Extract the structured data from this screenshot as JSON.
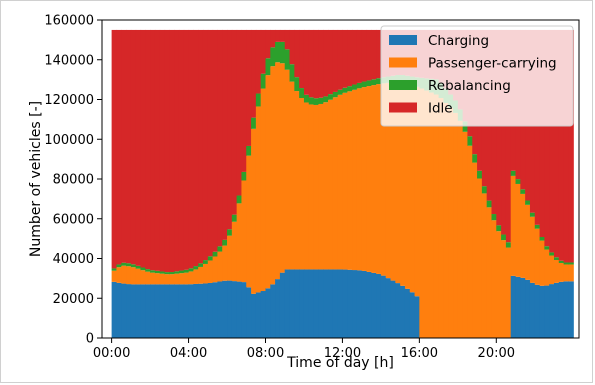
{
  "chart_data": {
    "type": "stacked-bar",
    "title": "",
    "xlabel": "Time of day [h]",
    "ylabel": "Number of vehicles [-]",
    "xlim": [
      -0.5,
      24.3
    ],
    "ylim": [
      0,
      160000
    ],
    "x_ticks": [
      0,
      4,
      8,
      12,
      16,
      20
    ],
    "x_tick_labels": [
      "00:00",
      "04:00",
      "08:00",
      "12:00",
      "16:00",
      "20:00"
    ],
    "y_ticks": [
      0,
      20000,
      40000,
      60000,
      80000,
      100000,
      120000,
      140000,
      160000
    ],
    "y_tick_labels": [
      "0",
      "20000",
      "40000",
      "60000",
      "80000",
      "100000",
      "120000",
      "140000",
      "160000"
    ],
    "grid": false,
    "legend_position": "top-right",
    "total_fleet": 155000,
    "bin_width_hours": 0.25,
    "series": [
      {
        "name": "Charging",
        "color": "#1f77b4",
        "anchors": [
          [
            0,
            28500
          ],
          [
            0.5,
            27500
          ],
          [
            1,
            27000
          ],
          [
            2,
            27000
          ],
          [
            3,
            27000
          ],
          [
            4,
            27000
          ],
          [
            5,
            27500
          ],
          [
            6,
            29000
          ],
          [
            7,
            28000
          ],
          [
            7.3,
            22000
          ],
          [
            8,
            24000
          ],
          [
            8.5,
            28000
          ],
          [
            9,
            34500
          ],
          [
            10,
            34500
          ],
          [
            11,
            34500
          ],
          [
            12,
            34500
          ],
          [
            13,
            34000
          ],
          [
            14,
            32000
          ],
          [
            15,
            27000
          ],
          [
            15.5,
            24000
          ],
          [
            16,
            20000
          ],
          [
            16.01,
            0
          ],
          [
            19,
            0
          ],
          [
            20.75,
            0
          ],
          [
            20.76,
            31500
          ],
          [
            21.5,
            30000
          ],
          [
            22,
            27000
          ],
          [
            22.5,
            26000
          ],
          [
            23,
            27500
          ],
          [
            23.5,
            28500
          ]
        ]
      },
      {
        "name": "Passenger-carrying",
        "color": "#ff7f0e",
        "total_anchors": [
          [
            0,
            33000
          ],
          [
            0.5,
            36500
          ],
          [
            1,
            36000
          ],
          [
            2,
            33000
          ],
          [
            3,
            32000
          ],
          [
            4,
            33000
          ],
          [
            4.5,
            35000
          ],
          [
            5,
            38000
          ],
          [
            5.5,
            42000
          ],
          [
            6,
            48000
          ],
          [
            6.5,
            62000
          ],
          [
            7,
            85000
          ],
          [
            7.5,
            112000
          ],
          [
            8,
            130000
          ],
          [
            8.5,
            139000
          ],
          [
            9,
            138000
          ],
          [
            9.5,
            126000
          ],
          [
            10,
            119000
          ],
          [
            10.5,
            117000
          ],
          [
            11,
            118000
          ],
          [
            12,
            123000
          ],
          [
            13,
            126000
          ],
          [
            14,
            128000
          ],
          [
            15,
            129000
          ],
          [
            16,
            126000
          ],
          [
            17,
            122000
          ],
          [
            18,
            112000
          ],
          [
            18.5,
            101000
          ],
          [
            19,
            84000
          ],
          [
            19.5,
            69000
          ],
          [
            20,
            56000
          ],
          [
            20.5,
            47000
          ],
          [
            20.75,
            44000
          ],
          [
            20.76,
            83000
          ],
          [
            21,
            80000
          ],
          [
            21.5,
            70000
          ],
          [
            22,
            58000
          ],
          [
            22.5,
            46000
          ],
          [
            23,
            40000
          ],
          [
            23.5,
            37000
          ]
        ]
      },
      {
        "name": "Rebalancing",
        "color": "#2ca02c",
        "extra_anchors": [
          [
            0,
            1000
          ],
          [
            0.5,
            1500
          ],
          [
            1,
            1500
          ],
          [
            3,
            1000
          ],
          [
            4,
            1500
          ],
          [
            5,
            2000
          ],
          [
            6,
            3000
          ],
          [
            7,
            4500
          ],
          [
            7.5,
            6000
          ],
          [
            8,
            8000
          ],
          [
            8.5,
            10000
          ],
          [
            9,
            11000
          ],
          [
            9.5,
            8000
          ],
          [
            10,
            4000
          ],
          [
            11,
            3000
          ],
          [
            12,
            2500
          ],
          [
            14,
            3000
          ],
          [
            15,
            3500
          ],
          [
            16,
            5000
          ],
          [
            17,
            8000
          ],
          [
            18,
            6000
          ],
          [
            19,
            4000
          ],
          [
            20,
            3000
          ],
          [
            21,
            2500
          ],
          [
            22,
            2000
          ],
          [
            23,
            1500
          ],
          [
            23.5,
            1000
          ]
        ]
      },
      {
        "name": "Idle",
        "color": "#d62728"
      }
    ]
  }
}
